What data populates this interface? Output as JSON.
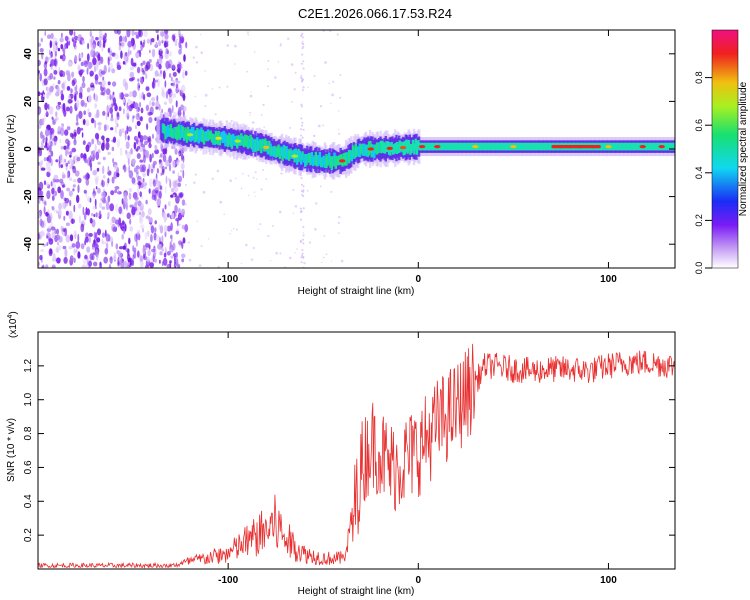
{
  "title": "C2E1.2026.066.17.53.R24",
  "chart_data": [
    {
      "type": "heatmap",
      "xlabel": "Height of straight line (km)",
      "ylabel": "Frequency (Hz)",
      "xlim": [
        -200,
        135
      ],
      "ylim": [
        -50,
        50
      ],
      "xticks": [
        -100,
        0,
        100
      ],
      "yticks": [
        -40,
        -20,
        0,
        20,
        40
      ],
      "colorbar": {
        "label": "Normalized spectral amplitude",
        "range": [
          0,
          1
        ],
        "ticks": [
          "0.0",
          "0.2",
          "0.4",
          "0.6",
          "0.8"
        ]
      },
      "ridge": {
        "x": [
          -135,
          -120,
          -100,
          -85,
          -70,
          -60,
          -50,
          -40,
          -35,
          -30,
          -20,
          0,
          20,
          60,
          100,
          135
        ],
        "freq": [
          8,
          6,
          4,
          2,
          -2,
          -4,
          -5,
          -5,
          -2,
          0,
          0,
          1,
          1,
          1,
          1,
          1
        ]
      },
      "noise_region": {
        "xmin": -200,
        "xmax": -130
      }
    },
    {
      "type": "line",
      "xlabel": "Height of straight line (km)",
      "ylabel": "SNR (10 * v/v)",
      "yscale_label": "(x10",
      "yscale_exp": "4",
      "xlim": [
        -200,
        135
      ],
      "ylim": [
        0,
        1.4
      ],
      "xticks": [
        -100,
        0,
        100
      ],
      "yticks": [
        "0.2",
        "0.4",
        "0.6",
        "0.8",
        "1.0",
        "1.2"
      ],
      "series": [
        {
          "name": "SNR",
          "color": "#e83030",
          "envelope_x": [
            -200,
            -130,
            -120,
            -100,
            -90,
            -80,
            -75,
            -70,
            -60,
            -50,
            -40,
            -35,
            -30,
            -25,
            -20,
            -15,
            -10,
            0,
            10,
            20,
            30,
            35,
            40,
            50,
            60,
            70,
            80,
            90,
            100,
            110,
            120,
            135
          ],
          "envelope_y": [
            0.02,
            0.02,
            0.05,
            0.1,
            0.18,
            0.25,
            0.3,
            0.2,
            0.1,
            0.07,
            0.07,
            0.25,
            0.6,
            0.75,
            0.7,
            0.6,
            0.62,
            0.7,
            0.85,
            0.95,
            1.1,
            1.2,
            1.2,
            1.18,
            1.17,
            1.18,
            1.18,
            1.17,
            1.2,
            1.22,
            1.22,
            1.2
          ]
        }
      ]
    }
  ]
}
